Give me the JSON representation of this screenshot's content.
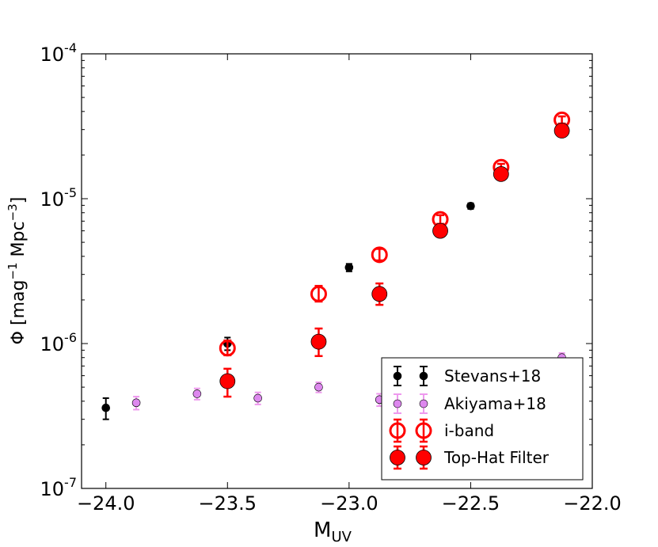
{
  "chart_data": {
    "type": "scatter",
    "title": "",
    "xlabel": "M",
    "xlabel_sub": "UV",
    "ylabel": "Φ [mag",
    "ylabel_sup1": "−1",
    "ylabel_mid": " Mpc",
    "ylabel_sup2": "−3",
    "ylabel_end": "]",
    "xlim": [
      -24.1,
      -22.0
    ],
    "ylim": [
      1e-07,
      0.0001
    ],
    "yscale": "log",
    "grid": false,
    "legend_position": "lower-right",
    "x_ticks": [
      {
        "value": -24.0,
        "label": "−24.0"
      },
      {
        "value": -23.5,
        "label": "−23.5"
      },
      {
        "value": -23.0,
        "label": "−23.0"
      },
      {
        "value": -22.5,
        "label": "−22.5"
      },
      {
        "value": -22.0,
        "label": "−22.0"
      }
    ],
    "y_ticks": [
      {
        "value": 1e-07,
        "base": "10",
        "exp": "-7"
      },
      {
        "value": 1e-06,
        "base": "10",
        "exp": "-6"
      },
      {
        "value": 1e-05,
        "base": "10",
        "exp": "-5"
      },
      {
        "value": 0.0001,
        "base": "10",
        "exp": "-4"
      }
    ],
    "series": [
      {
        "name": "Stevans+18",
        "color": "#000000",
        "marker": "filled-small",
        "points": [
          {
            "x": -24.0,
            "y": 3.6e-07,
            "lo": 3e-07,
            "hi": 4.2e-07
          },
          {
            "x": -23.5,
            "y": 1e-06,
            "lo": 9e-07,
            "hi": 1.1e-06
          },
          {
            "x": -23.0,
            "y": 3.35e-06,
            "lo": 3.15e-06,
            "hi": 3.55e-06
          },
          {
            "x": -22.5,
            "y": 8.9e-06,
            "lo": 8.5e-06,
            "hi": 9.3e-06
          }
        ]
      },
      {
        "name": "Akiyama+18",
        "color": "#dd88ee",
        "marker": "filled-small",
        "points": [
          {
            "x": -23.875,
            "y": 3.9e-07,
            "lo": 3.5e-07,
            "hi": 4.3e-07
          },
          {
            "x": -23.625,
            "y": 4.5e-07,
            "lo": 4.1e-07,
            "hi": 4.9e-07
          },
          {
            "x": -23.375,
            "y": 4.2e-07,
            "lo": 3.8e-07,
            "hi": 4.6e-07
          },
          {
            "x": -23.125,
            "y": 5e-07,
            "lo": 4.6e-07,
            "hi": 5.4e-07
          },
          {
            "x": -22.875,
            "y": 4.1e-07,
            "lo": 3.7e-07,
            "hi": 4.5e-07
          },
          {
            "x": -22.125,
            "y": 8e-07,
            "lo": 7.4e-07,
            "hi": 8.6e-07
          }
        ]
      },
      {
        "name": "i-band",
        "color": "#ff0000",
        "marker": "open-large",
        "points": [
          {
            "x": -23.5,
            "y": 9.3e-07,
            "lo": 8.3e-07,
            "hi": 1.05e-06
          },
          {
            "x": -23.125,
            "y": 2.2e-06,
            "lo": 1.95e-06,
            "hi": 2.5e-06
          },
          {
            "x": -22.875,
            "y": 4.1e-06,
            "lo": 3.75e-06,
            "hi": 4.5e-06
          },
          {
            "x": -22.625,
            "y": 7.2e-06,
            "lo": 6.7e-06,
            "hi": 7.7e-06
          },
          {
            "x": -22.375,
            "y": 1.65e-05,
            "lo": 1.56e-05,
            "hi": 1.74e-05
          },
          {
            "x": -22.125,
            "y": 3.5e-05,
            "lo": 3.3e-05,
            "hi": 3.7e-05
          }
        ]
      },
      {
        "name": "Top-Hat Filter",
        "color": "#ff0000",
        "marker": "filled-large",
        "points": [
          {
            "x": -23.5,
            "y": 5.5e-07,
            "lo": 4.3e-07,
            "hi": 6.7e-07
          },
          {
            "x": -23.125,
            "y": 1.03e-06,
            "lo": 8.2e-07,
            "hi": 1.27e-06
          },
          {
            "x": -22.875,
            "y": 2.2e-06,
            "lo": 1.85e-06,
            "hi": 2.6e-06
          },
          {
            "x": -22.625,
            "y": 6e-06,
            "lo": 5.5e-06,
            "hi": 6.5e-06
          },
          {
            "x": -22.375,
            "y": 1.48e-05,
            "lo": 1.42e-05,
            "hi": 1.54e-05
          },
          {
            "x": -22.125,
            "y": 2.95e-05,
            "lo": 2.85e-05,
            "hi": 3.05e-05
          }
        ]
      }
    ],
    "legend": [
      {
        "label": "Stevans+18"
      },
      {
        "label": "Akiyama+18"
      },
      {
        "label": "i-band"
      },
      {
        "label": "Top-Hat Filter"
      }
    ]
  }
}
